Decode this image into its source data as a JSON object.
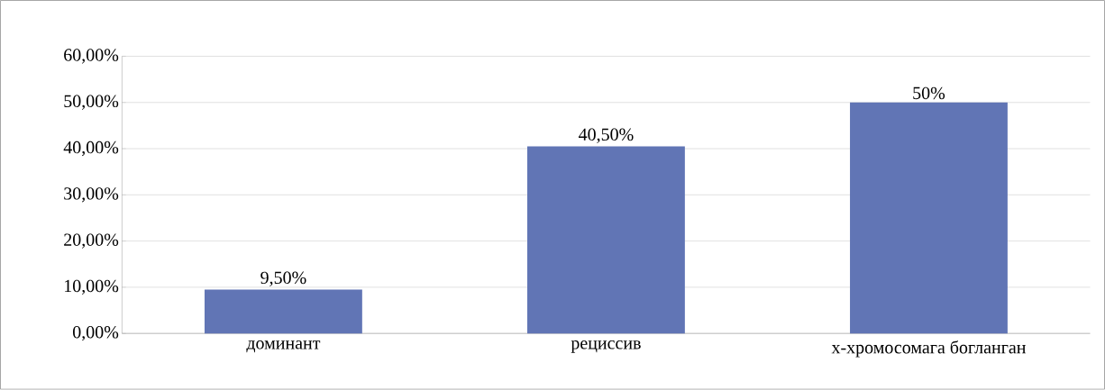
{
  "chart_data": {
    "type": "bar",
    "categories": [
      "доминант",
      "рециссив",
      "x-хромосомага богланган"
    ],
    "values": [
      9.5,
      40.5,
      50
    ],
    "value_labels": [
      "9,50%",
      "40,50%",
      "50%"
    ],
    "color": "#6175b5",
    "ylim": [
      0,
      60
    ],
    "yticks": [
      {
        "value": 0,
        "label": "0,00%"
      },
      {
        "value": 10,
        "label": "10,00%"
      },
      {
        "value": 20,
        "label": "20,00%"
      },
      {
        "value": 30,
        "label": "30,00%"
      },
      {
        "value": 40,
        "label": "40,00%"
      },
      {
        "value": 50,
        "label": "50,00%"
      },
      {
        "value": 60,
        "label": "60,00%"
      }
    ],
    "grid": "y"
  }
}
